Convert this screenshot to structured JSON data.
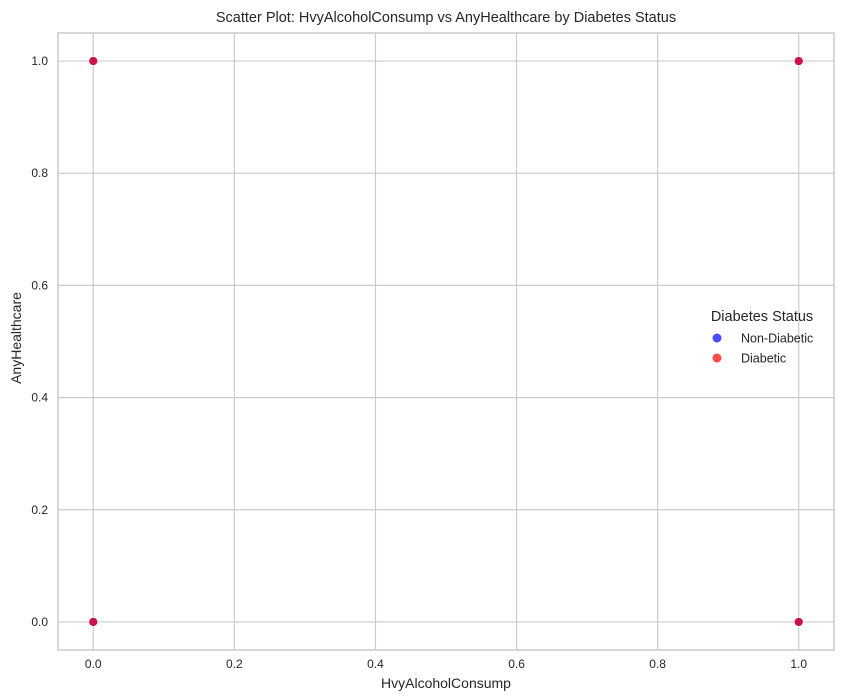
{
  "chart_data": {
    "type": "scatter",
    "title": "Scatter Plot: HvyAlcoholConsump vs AnyHealthcare by Diabetes Status",
    "xlabel": "HvyAlcoholConsump",
    "ylabel": "AnyHealthcare",
    "xlim": [
      -0.05,
      1.05
    ],
    "ylim": [
      -0.05,
      1.05
    ],
    "xticks": [
      0.0,
      0.2,
      0.4,
      0.6,
      0.8,
      1.0
    ],
    "yticks": [
      0.0,
      0.2,
      0.4,
      0.6,
      0.8,
      1.0
    ],
    "xtick_labels": [
      "0.0",
      "0.2",
      "0.4",
      "0.6",
      "0.8",
      "1.0"
    ],
    "ytick_labels": [
      "0.0",
      "0.2",
      "0.4",
      "0.6",
      "0.8",
      "1.0"
    ],
    "grid": true,
    "legend": {
      "title": "Diabetes Status",
      "placement": "center-right"
    },
    "series": [
      {
        "name": "Non-Diabetic",
        "color": "#0000ff",
        "points": [
          {
            "x": 0,
            "y": 0
          },
          {
            "x": 0,
            "y": 1
          },
          {
            "x": 1,
            "y": 0
          },
          {
            "x": 1,
            "y": 1
          }
        ]
      },
      {
        "name": "Diabetic",
        "color": "#ff0000",
        "points": [
          {
            "x": 0,
            "y": 0
          },
          {
            "x": 0,
            "y": 1
          },
          {
            "x": 1,
            "y": 0
          },
          {
            "x": 1,
            "y": 1
          }
        ]
      }
    ]
  },
  "colors": {
    "axes_edge": "#cccccc",
    "grid": "#cccccc",
    "text": "#262626"
  }
}
